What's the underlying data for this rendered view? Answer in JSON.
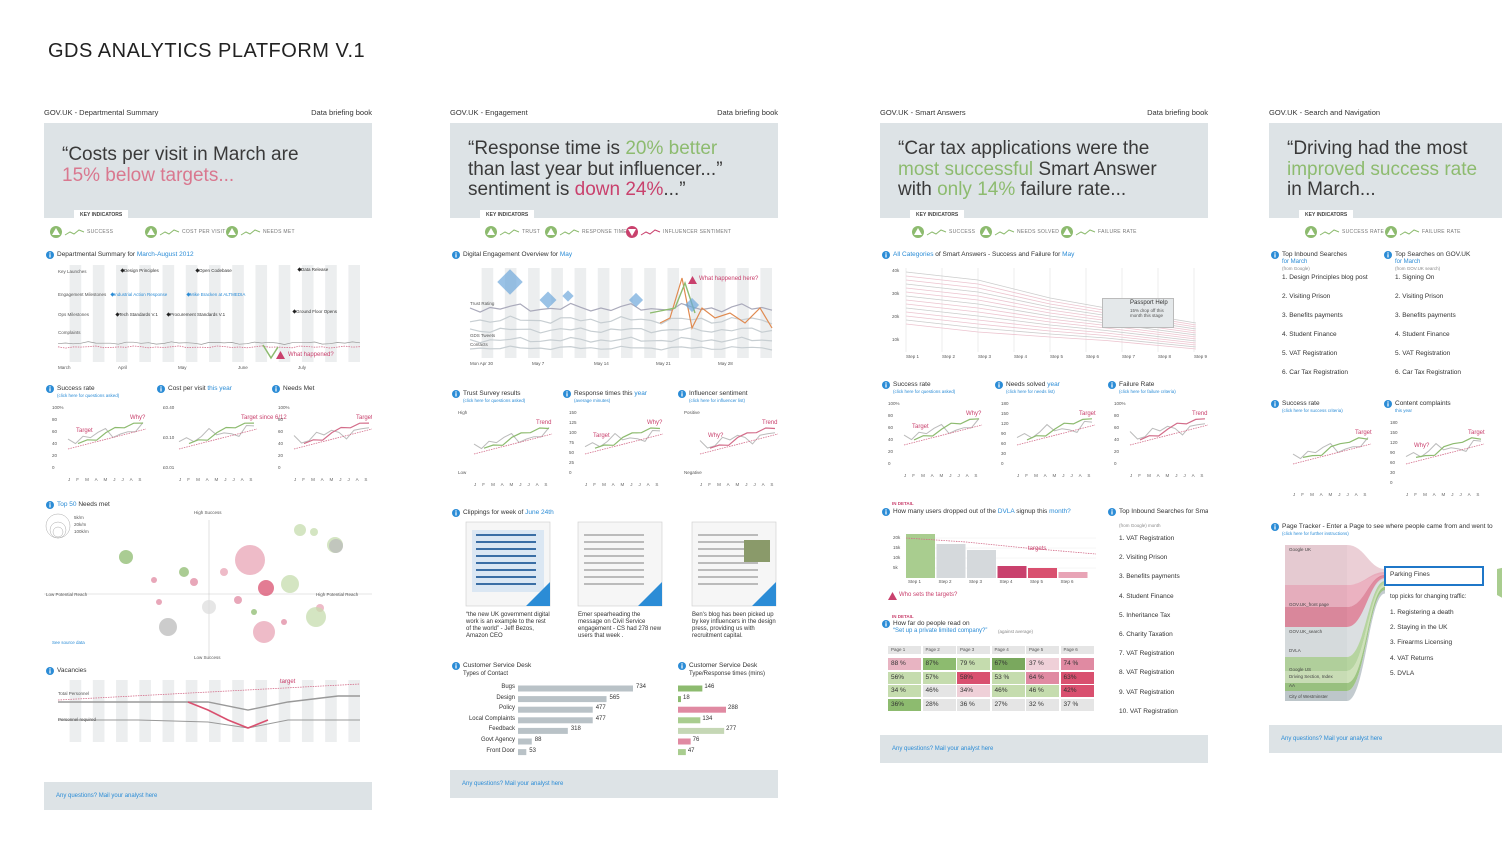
{
  "title": "GDS ANALYTICS PLATFORM V.1",
  "footer": "Any questions? Mail your analyst here",
  "key_label": "KEY INDICATORS",
  "months": "J F M A M J J A S",
  "panels": [
    {
      "header": "GOV.UK - Departmental Summary",
      "book": "Data briefing book",
      "quote": [
        [
          {
            "text": "“Costs per visit in March are"
          }
        ],
        [
          {
            "text": "15% below targets...",
            "color": "#d9788f"
          }
        ]
      ],
      "indicators": [
        {
          "label": "SUCCESS",
          "color": "#8dbb6f"
        },
        {
          "label": "COST PER VISIT",
          "color": "#8dbb6f"
        },
        {
          "label": "NEEDS MET",
          "color": "#8dbb6f"
        }
      ],
      "overview": {
        "title": [
          {
            "text": "Departmental Summary for "
          },
          {
            "text": "March-August 2012",
            "color": "#2b8cd6"
          }
        ],
        "rows": [
          "Key Launches",
          "Engagement Milestones",
          "Ops Milestones",
          "Complaints"
        ],
        "events": [
          {
            "text": "Design Principles"
          },
          {
            "text": "Open Codebase"
          },
          {
            "text": "Data Release"
          },
          {
            "text": "Industrial Action Response",
            "color": "#2b8cd6"
          },
          {
            "text": "Mike Bracken at ALTMEDIA",
            "color": "#2b8cd6"
          },
          {
            "text": "Tech Standards V.1"
          },
          {
            "text": "Procurement Standards V.1"
          },
          {
            "text": "Ground Floor Opens"
          }
        ],
        "dates": [
          "March",
          "April",
          "May",
          "June",
          "July"
        ],
        "annotation": "What happened?"
      },
      "minis": [
        {
          "title": [
            {
              "text": "Success rate"
            }
          ],
          "sub": "(click here for questions asked)",
          "axis": [
            "100%",
            "80",
            "60",
            "40",
            "20",
            "0"
          ],
          "notes": [
            {
              "text": "Why?",
              "color": "#c9416d"
            },
            {
              "text": "Target",
              "color": "#c9416d"
            }
          ]
        },
        {
          "title": [
            {
              "text": "Cost per visit "
            },
            {
              "text": "this year",
              "color": "#2b8cd6"
            }
          ],
          "axis": [
            "£0.40",
            "£0.10",
            "£0.01"
          ],
          "notes": [
            {
              "text": "Target since 6/12",
              "color": "#c9416d"
            }
          ]
        },
        {
          "title": [
            {
              "text": "Needs Met"
            }
          ],
          "axis": [
            "100%",
            "80",
            "60",
            "40",
            "20",
            "0"
          ],
          "notes": [
            {
              "text": "Target",
              "color": "#c9416d"
            }
          ]
        }
      ],
      "bubble": {
        "title": [
          {
            "text": "Top 50",
            "color": "#2b8cd6"
          },
          {
            "text": " Needs met"
          }
        ],
        "legend": [
          "5k/m",
          "20k/m",
          "100k/m"
        ],
        "labels": [
          "High Success",
          "Low Success",
          "Low Potential Reach",
          "High Potential Reach"
        ],
        "source": "See source data"
      },
      "vacancies": {
        "title": [
          {
            "text": "Vacancies"
          }
        ],
        "labels": [
          "Total Personnel",
          "Personnel required"
        ],
        "target": "target"
      }
    },
    {
      "header": "GOV.UK - Engagement",
      "book": "Data briefing book",
      "quote": [
        [
          {
            "text": "“Response time is "
          },
          {
            "text": "20% better",
            "color": "#8dbb6f"
          }
        ],
        [
          {
            "text": "than last year but influencer...”"
          }
        ],
        [
          {
            "text": "sentiment is "
          },
          {
            "text": "down 24%",
            "color": "#c9416d"
          },
          {
            "text": "...”"
          }
        ]
      ],
      "indicators": [
        {
          "label": "TRUST",
          "color": "#8dbb6f"
        },
        {
          "label": "RESPONSE TIME",
          "color": "#8dbb6f"
        },
        {
          "label": "INFLUENCER SENTIMENT",
          "color": "#c9416d"
        }
      ],
      "overview": {
        "title": [
          {
            "text": "Digital Engagement Overview for "
          },
          {
            "text": "May",
            "color": "#2b8cd6"
          }
        ],
        "rows": [
          "Trust Rating",
          "GDS Tweets",
          "Contacts"
        ],
        "dates": [
          "Mon Apr 30",
          "May 7",
          "May 14",
          "May 21",
          "May 28"
        ],
        "annotation": "What happened here?"
      },
      "minis": [
        {
          "title": [
            {
              "text": "Trust Survey results"
            }
          ],
          "sub": "(click here for questions asked)",
          "axis": [
            "High",
            "Low"
          ],
          "notes": [
            {
              "text": "Trend",
              "color": "#c9416d"
            }
          ]
        },
        {
          "title": [
            {
              "text": "Response times this "
            },
            {
              "text": "year",
              "color": "#2b8cd6"
            }
          ],
          "sub": "(average minutes)",
          "axis": [
            "150",
            "125",
            "100",
            "75",
            "50",
            "25",
            "0"
          ],
          "notes": [
            {
              "text": "Why?",
              "color": "#c9416d"
            },
            {
              "text": "Target",
              "color": "#c9416d"
            }
          ]
        },
        {
          "title": [
            {
              "text": "Influencer sentiment"
            }
          ],
          "sub": "(click here for influencer list)",
          "axis": [
            "Positive",
            "Negative"
          ],
          "notes": [
            {
              "text": "Trend",
              "color": "#c9416d"
            },
            {
              "text": "Why?",
              "color": "#c9416d"
            }
          ]
        }
      ],
      "clippings": {
        "title": [
          {
            "text": "Clippings for week of "
          },
          {
            "text": "June 24th",
            "color": "#2b8cd6"
          }
        ],
        "captions": [
          "“the new UK government digital work is an example to the rest of the world” - Jeff Bezos, Amazon CEO",
          "Emer spearheading the message on Civil Service engagement - CS had 278 new users that week .",
          "Ben's blog has been picked up by key influencers in the design press, providing us with recruitment capital."
        ]
      },
      "desk": {
        "title": [
          {
            "text": "Customer Service Desk"
          }
        ],
        "sub": "Types of Contact",
        "categories": [
          "Bugs",
          "Design",
          "Policy",
          "Local Complaints",
          "Feedback",
          "Govt Agency",
          "Front Door"
        ],
        "values": [
          734,
          565,
          477,
          477,
          318,
          88,
          53
        ],
        "color": "#b9c2c7"
      },
      "desk_times": {
        "title": [
          {
            "text": "Customer Service Desk"
          }
        ],
        "sub": "Type/Response times (mins)",
        "values": [
          146,
          18,
          288,
          134,
          277,
          76,
          47
        ],
        "colors": [
          "#8dbb6f",
          "#8dbb6f",
          "#e08aa2",
          "#a9cd8f",
          "#c5d7b5",
          "#e08aa2",
          "#a9cd8f"
        ]
      }
    },
    {
      "header": "GOV.UK - Smart Answers",
      "book": "Data briefing book",
      "quote": [
        [
          {
            "text": "“Car tax applications were the"
          }
        ],
        [
          {
            "text": "most successful",
            "color": "#8dbb6f"
          },
          {
            "text": " Smart Answer"
          }
        ],
        [
          {
            "text": "with "
          },
          {
            "text": "only 14%",
            "color": "#8dbb6f"
          },
          {
            "text": " failure rate..."
          }
        ]
      ],
      "indicators": [
        {
          "label": "SUCCESS",
          "color": "#8dbb6f"
        },
        {
          "label": "NEEDS SOLVED",
          "color": "#8dbb6f"
        },
        {
          "label": "FAILURE RATE",
          "color": "#8dbb6f"
        }
      ],
      "overview": {
        "title": [
          {
            "text": "All Categories",
            "color": "#2b8cd6"
          },
          {
            "text": " of Smart Answers - Success and Failure for "
          },
          {
            "text": "May",
            "color": "#2b8cd6"
          }
        ],
        "axis": [
          "40k",
          "30k",
          "20k",
          "10k"
        ],
        "steps": [
          "Step 1",
          "Step 2",
          "Step 3",
          "Step 4",
          "Step 5",
          "Step 6",
          "Step 7",
          "Step 8",
          "Step 9"
        ],
        "callout": "Passport Help",
        "callout_note": "15% drop off this month this stage"
      },
      "minis": [
        {
          "title": [
            {
              "text": "Success rate"
            }
          ],
          "sub": "(click here for questions asked)",
          "axis": [
            "100%",
            "80",
            "60",
            "40",
            "20",
            "0"
          ],
          "notes": [
            {
              "text": "Why?",
              "color": "#c9416d"
            },
            {
              "text": "Target",
              "color": "#c9416d"
            }
          ]
        },
        {
          "title": [
            {
              "text": "Needs solved "
            },
            {
              "text": "year",
              "color": "#2b8cd6"
            }
          ],
          "sub": "(click here for needs list)",
          "axis": [
            "180",
            "150",
            "120",
            "90",
            "60",
            "30",
            "0"
          ],
          "notes": [
            {
              "text": "Target",
              "color": "#c9416d"
            }
          ]
        },
        {
          "title": [
            {
              "text": "Failure Rate"
            }
          ],
          "sub": "(click here for failure criteria)",
          "axis": [
            "100%",
            "80",
            "60",
            "40",
            "20",
            "0"
          ],
          "notes": [
            {
              "text": "Trend",
              "color": "#c9416d"
            }
          ]
        }
      ],
      "dropoff": {
        "tag": "IN DETAIL",
        "title": [
          {
            "text": "How many users dropped out of the "
          },
          {
            "text": "DVLA",
            "color": "#2b8cd6"
          },
          {
            "text": " signup this "
          },
          {
            "text": "month?",
            "color": "#2b8cd6"
          }
        ],
        "categories": [
          "Step 1",
          "Step 2",
          "Step 3",
          "Step 4",
          "Step 5",
          "Step 6"
        ],
        "values": [
          22,
          17,
          14,
          6,
          5,
          3
        ],
        "colors": [
          "#a9cd8f",
          "#d5d9dc",
          "#d5d9dc",
          "#c9416d",
          "#d9506f",
          "#e8a4b6"
        ],
        "ylim": [
          0,
          25
        ],
        "yticks": [
          {
            "value": 20,
            "label": "20k"
          },
          {
            "value": 15,
            "label": "15k"
          },
          {
            "value": 10,
            "label": "10k"
          },
          {
            "value": 5,
            "label": "5k"
          }
        ],
        "target": "targets",
        "question": "Who sets the targets?"
      },
      "reading": {
        "tag": "IN DETAIL",
        "title": [
          {
            "text": "How far do people read on"
          }
        ],
        "link": "“Set up a private limited company?”",
        "sub": "(against average)",
        "columns": [
          "Page 1",
          "Page 2",
          "Page 3",
          "Page 4",
          "Page 5",
          "Page 6"
        ],
        "rows": [
          [
            "88 %",
            "87%",
            "79 %",
            "67%",
            "37 %",
            "74 %"
          ],
          [
            "56%",
            "57%",
            "58%",
            "53 %",
            "64 %",
            "63%"
          ],
          [
            "34 %",
            "46%",
            "34%",
            "46%",
            "46 %",
            "42%"
          ],
          [
            "36%",
            "28%",
            "36 %",
            "27%",
            "32 %",
            "37 %"
          ]
        ],
        "cell_colors": [
          [
            "#e8b4c2",
            "#8dbb6f",
            "#c5dcae",
            "#7aa85e",
            "#efd0d8",
            "#e08aa2"
          ],
          [
            "#c5dcae",
            "#c5dcae",
            "#d9506f",
            "#c5dcae",
            "#e08aa2",
            "#d9506f"
          ],
          [
            "#c5dcae",
            "#e5e5e5",
            "#efd0d8",
            "#c5dcae",
            "#c5dcae",
            "#d9506f"
          ],
          [
            "#8dbb6f",
            "#e5e5e5",
            "#e5e5e5",
            "#e5e5e5",
            "#e5e5e5",
            "#e5e5e5"
          ]
        ]
      },
      "searches": {
        "title": [
          {
            "text": "Top Inbound Searches for Smart Answers"
          }
        ],
        "sub": "(from Google) month",
        "items": [
          "1. VAT Registration",
          "2. Visiting Prison",
          "3. Benefits payments",
          "4. Student Finance",
          "5. Inheritance Tax",
          "6. Charity Taxation",
          "7. VAT Registration",
          "8. VAT Registration",
          "9. VAT Registration",
          "10. VAT Registration"
        ]
      }
    },
    {
      "header": "GOV.UK - Search and Navigation",
      "quote": [
        [
          {
            "text": "“Driving had the most"
          }
        ],
        [
          {
            "text": "improved success rate",
            "color": "#8dbb6f"
          }
        ],
        [
          {
            "text": "in March..."
          }
        ]
      ],
      "indicators": [
        {
          "label": "SUCCESS RATE",
          "color": "#8dbb6f"
        },
        {
          "label": "FAILURE RATE",
          "color": "#8dbb6f"
        }
      ],
      "lists": [
        {
          "title": [
            {
              "text": "Top Inbound Searches"
            }
          ],
          "link": "for March",
          "sub": "(from Google)",
          "items": [
            "1. Design Principles blog post",
            "2. Visiting Prison",
            "3. Benefits payments",
            "4. Student Finance",
            "5. VAT Registration",
            "6. Car Tax Registration"
          ]
        },
        {
          "title": [
            {
              "text": "Top Searches on GOV.UK"
            }
          ],
          "link": "for March",
          "sub": "(from GOV.UK search)",
          "items": [
            "1. Signing On",
            "2. Visiting Prison",
            "3. Benefits payments",
            "4. Student Finance",
            "5. VAT Registration",
            "6. Car Tax Registration"
          ]
        }
      ],
      "minis": [
        {
          "title": [
            {
              "text": "Success rate"
            }
          ],
          "sub": "(click here for success criteria)",
          "notes": [
            {
              "text": "Target",
              "color": "#c9416d"
            }
          ]
        },
        {
          "title": [
            {
              "text": "Content complaints"
            }
          ],
          "sub": "this year",
          "axis": [
            "180",
            "150",
            "120",
            "90",
            "60",
            "30",
            "0"
          ],
          "notes": [
            {
              "text": "Target",
              "color": "#c9416d"
            },
            {
              "text": "Why?",
              "color": "#c9416d"
            }
          ]
        }
      ],
      "tracker": {
        "title": [
          {
            "text": "Page Tracker - Enter a Page to see  where people came from and went to"
          }
        ],
        "sub": "(click here for further instructions)",
        "sources": [
          "Google UK",
          "GOV.UK_front page",
          "GOV.UK_search",
          "DVLA",
          "Google US",
          "Driving Section, Index",
          "AA",
          "City of Westminster"
        ],
        "page": "Parking Fines",
        "picks_title": "top picks for changing traffic:",
        "picks": [
          "1. Registering a death",
          "2. Staying in the UK",
          "3. Firearms Licensing",
          "4. VAT Returns",
          "5. DVLA"
        ]
      }
    }
  ]
}
